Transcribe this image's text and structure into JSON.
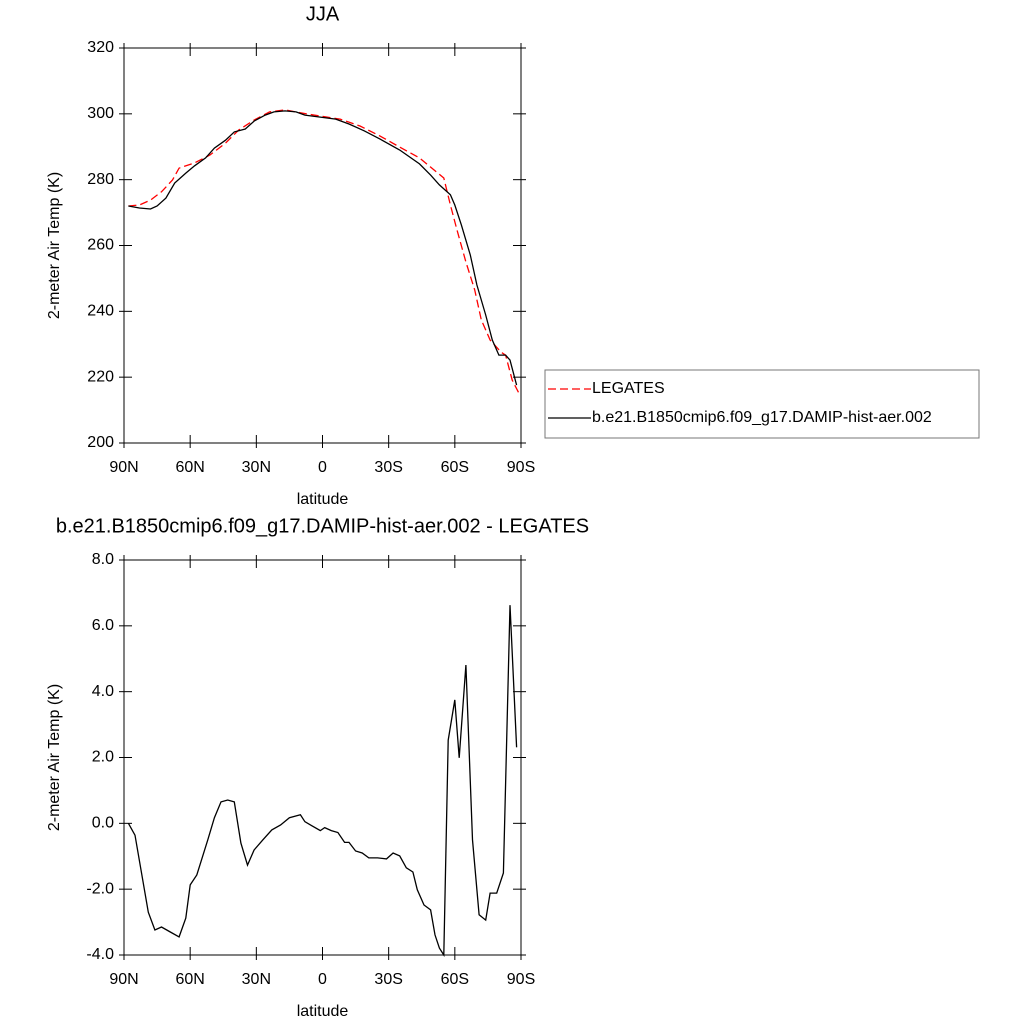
{
  "chart_data": [
    {
      "type": "line",
      "title": "JJA",
      "x_label": "latitude",
      "y_label": "2-meter Air Temp (K)",
      "xlim": [
        90,
        -90
      ],
      "xticks": [
        {
          "value": 90,
          "label": "90N"
        },
        {
          "value": 60,
          "label": "60N"
        },
        {
          "value": 30,
          "label": "30N"
        },
        0,
        {
          "value": -30,
          "label": "30S"
        },
        {
          "value": -60,
          "label": "60S"
        },
        {
          "value": -90,
          "label": "90S"
        }
      ],
      "ylim": [
        200,
        320
      ],
      "yticks": [
        200,
        220,
        240,
        260,
        280,
        300,
        320
      ],
      "legend": "outside-right",
      "series": [
        {
          "name": "LEGATES",
          "color": "#ff0000",
          "dashed": true,
          "x": [
            88,
            83,
            78,
            73,
            68,
            65,
            58,
            51,
            44,
            38,
            31,
            24,
            17,
            10,
            1,
            -8,
            -17,
            -26,
            -35,
            -44,
            -55,
            -58,
            -61,
            -65,
            -69,
            -72,
            -76,
            -81,
            -83,
            -86,
            -89
          ],
          "values": [
            272,
            272.3,
            273.8,
            276.3,
            279.9,
            283.5,
            285.1,
            287.5,
            291.1,
            295.1,
            298.1,
            300.6,
            301.2,
            300.3,
            299.3,
            298.4,
            296.3,
            293.3,
            289.9,
            286.6,
            280.5,
            272.3,
            264.7,
            255,
            246.5,
            237.4,
            231.3,
            227.6,
            226.7,
            219.1,
            215.2
          ]
        },
        {
          "name": "b.e21.B1850cmip6.f09_g17.DAMIP-hist-aer.002",
          "color": "#000000",
          "dashed": false,
          "x": [
            88,
            83,
            78,
            75,
            71,
            67,
            62,
            58,
            53,
            49,
            44,
            40,
            35,
            31,
            26,
            22,
            17,
            12,
            8,
            1,
            -6,
            -12,
            -19,
            -26,
            -35,
            -44,
            -49,
            -53,
            -58,
            -60,
            -63,
            -67,
            -70,
            -74,
            -77,
            -80,
            -83,
            -85,
            -88
          ],
          "values": [
            272,
            271.4,
            271.1,
            272,
            274.4,
            279,
            282,
            284.2,
            286.6,
            289.6,
            292,
            294.5,
            295.4,
            297.8,
            299.6,
            300.6,
            300.9,
            300.6,
            299.6,
            299,
            298.4,
            296.9,
            294.8,
            292.4,
            289,
            284.8,
            281.4,
            278.4,
            275.4,
            272.3,
            266.2,
            257.1,
            248,
            238.9,
            231.3,
            226.7,
            226.7,
            225.2,
            217.6
          ]
        }
      ]
    },
    {
      "type": "line",
      "title": "b.e21.B1850cmip6.f09_g17.DAMIP-hist-aer.002 - LEGATES",
      "x_label": "latitude",
      "y_label": "2-meter Air Temp (K)",
      "xlim": [
        90,
        -90
      ],
      "xticks": [
        {
          "value": 90,
          "label": "90N"
        },
        {
          "value": 60,
          "label": "60N"
        },
        {
          "value": 30,
          "label": "30N"
        },
        0,
        {
          "value": -30,
          "label": "30S"
        },
        {
          "value": -60,
          "label": "60S"
        },
        {
          "value": -90,
          "label": "90S"
        }
      ],
      "ylim": [
        -4,
        8
      ],
      "yticks": [
        {
          "value": -4,
          "label": "-4.0"
        },
        {
          "value": -2,
          "label": "-2.0"
        },
        {
          "value": 0,
          "label": "0.0"
        },
        {
          "value": 2,
          "label": "2.0"
        },
        {
          "value": 4,
          "label": "4.0"
        },
        {
          "value": 6,
          "label": "6.0"
        },
        {
          "value": 8,
          "label": "8.0"
        }
      ],
      "series": [
        {
          "color": "#000000",
          "dashed": false,
          "x": [
            88,
            85,
            79,
            76,
            73,
            69,
            65,
            62,
            60,
            57,
            52,
            49,
            46,
            43,
            40,
            37,
            34,
            31,
            27,
            23,
            19,
            15,
            10,
            8,
            5,
            1,
            -1,
            -4,
            -7,
            -10,
            -12,
            -15,
            -18,
            -21,
            -25,
            -29,
            -32,
            -35,
            -38,
            -41,
            -43,
            -46,
            -49,
            -51,
            -53,
            -55,
            -57,
            -60,
            -62,
            -65,
            -68,
            -71,
            -74,
            -76,
            -79,
            -82,
            -85,
            -88
          ],
          "values": [
            0,
            -0.36,
            -2.7,
            -3.24,
            -3.15,
            -3.3,
            -3.45,
            -2.88,
            -1.87,
            -1.57,
            -0.5,
            0.17,
            0.65,
            0.71,
            0.65,
            -0.6,
            -1.27,
            -0.81,
            -0.5,
            -0.2,
            -0.05,
            0.17,
            0.26,
            0.05,
            -0.07,
            -0.22,
            -0.13,
            -0.22,
            -0.28,
            -0.58,
            -0.58,
            -0.84,
            -0.9,
            -1.05,
            -1.05,
            -1.08,
            -0.9,
            -0.99,
            -1.35,
            -1.48,
            -2.02,
            -2.48,
            -2.63,
            -3.39,
            -3.79,
            -4,
            2.53,
            3.75,
            1.99,
            4.81,
            -0.5,
            -2.78,
            -2.94,
            -2.12,
            -2.12,
            -1.51,
            6.63,
            2.31
          ]
        }
      ]
    }
  ]
}
